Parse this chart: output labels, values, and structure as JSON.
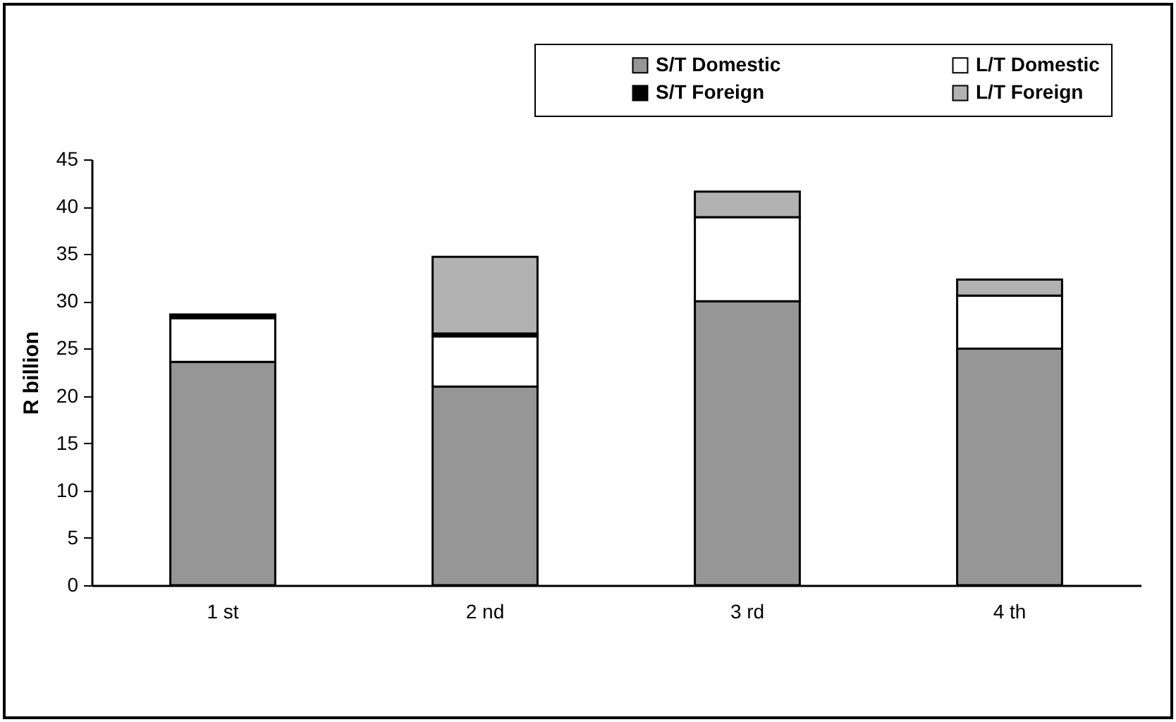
{
  "chart_data": {
    "type": "bar",
    "stacked": true,
    "ylabel": "R billion",
    "categories": [
      "1 st",
      "2 nd",
      "3 rd",
      "4 th"
    ],
    "series": [
      {
        "name": "S/T Domestic",
        "color": "#969696",
        "values": [
          23.6,
          21.0,
          30.0,
          25.0
        ]
      },
      {
        "name": "L/T Domestic",
        "color": "#ffffff",
        "values": [
          4.6,
          5.3,
          8.9,
          5.6
        ]
      },
      {
        "name": "S/T Foreign",
        "color": "#000000",
        "values": [
          0.4,
          0.3,
          null,
          null
        ]
      },
      {
        "name": "L/T Foreign",
        "color": "#b2b2b2",
        "values": [
          null,
          8.1,
          2.7,
          1.7
        ]
      }
    ],
    "ylim": [
      0,
      45
    ],
    "yticks": [
      0,
      5,
      10,
      15,
      20,
      25,
      30,
      35,
      40,
      45
    ],
    "grid": false,
    "legend": "top right"
  }
}
